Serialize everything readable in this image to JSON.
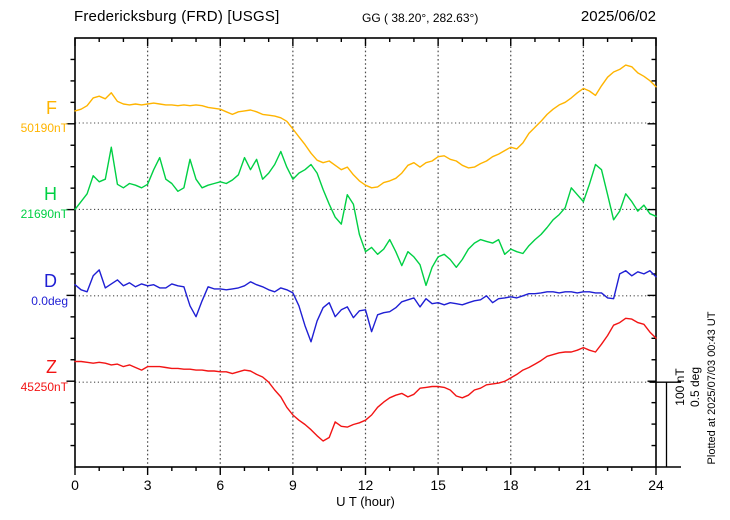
{
  "header": {
    "station_title": "Fredericksburg (FRD)  [USGS]",
    "coordinates": "GG ( 38.20°, 282.63°)",
    "date": "2025/06/02"
  },
  "axis": {
    "x_label": "U T (hour)",
    "x_tick_labels": [
      "0",
      "3",
      "6",
      "9",
      "12",
      "15",
      "18",
      "21",
      "24"
    ]
  },
  "scalebar": {
    "line1": "100 nT",
    "line2": "0.5 deg"
  },
  "footer": {
    "plotted_at": "Plotted at 2025/07/03 00:43 UT"
  },
  "chart_data": {
    "type": "line",
    "title": "Fredericksburg (FRD) magnetogram 2025/06/02",
    "xlabel": "U T (hour)",
    "x_range_hours": [
      0,
      24
    ],
    "x_major_tick_hours": 3,
    "x_minor_tick_hours": 1,
    "sample_step_hours": 0.25,
    "grid": "dotted, vertical every 3 h, horizontal at each trace baseline",
    "scale_per_division": {
      "nT": 100,
      "deg": 0.5
    },
    "series": [
      {
        "name": "F",
        "baseline_label": "50190nT",
        "baseline_value": 50190,
        "unit": "nT",
        "color": "#ffb400",
        "offsets": [
          14,
          16,
          20,
          29,
          31,
          28,
          35,
          25,
          22,
          21,
          22,
          21,
          22,
          23,
          22,
          21,
          21,
          20,
          21,
          20,
          21,
          20,
          18,
          17,
          16,
          13,
          10,
          13,
          14,
          15,
          13,
          10,
          9,
          8,
          6,
          2,
          -7,
          -16,
          -25,
          -35,
          -43,
          -46,
          -44,
          -49,
          -54,
          -51,
          -60,
          -67,
          -72,
          -75,
          -74,
          -69,
          -67,
          -64,
          -58,
          -49,
          -46,
          -51,
          -46,
          -44,
          -39,
          -38,
          -42,
          -44,
          -49,
          -52,
          -51,
          -47,
          -44,
          -39,
          -36,
          -32,
          -28,
          -30,
          -23,
          -12,
          -5,
          2,
          10,
          16,
          21,
          24,
          29,
          35,
          40,
          37,
          32,
          43,
          53,
          59,
          62,
          67,
          65,
          58,
          54,
          49,
          42
        ]
      },
      {
        "name": "H",
        "baseline_label": "21690nT",
        "baseline_value": 21690,
        "unit": "nT",
        "color": "#00d044",
        "offsets": [
          0,
          9,
          18,
          39,
          32,
          35,
          72,
          29,
          25,
          30,
          28,
          25,
          29,
          46,
          60,
          35,
          30,
          21,
          25,
          58,
          35,
          25,
          28,
          30,
          32,
          30,
          34,
          40,
          60,
          46,
          58,
          35,
          42,
          52,
          67,
          49,
          35,
          42,
          46,
          52,
          42,
          23,
          6,
          -9,
          -17,
          17,
          6,
          -29,
          -49,
          -44,
          -52,
          -46,
          -35,
          -49,
          -65,
          -49,
          -55,
          -64,
          -88,
          -67,
          -55,
          -52,
          -58,
          -67,
          -58,
          -46,
          -39,
          -35,
          -37,
          -39,
          -35,
          -52,
          -46,
          -49,
          -51,
          -42,
          -35,
          -29,
          -21,
          -12,
          -6,
          2,
          25,
          17,
          9,
          29,
          52,
          46,
          17,
          -12,
          -2,
          18,
          9,
          -2,
          5,
          -5,
          -8
        ]
      },
      {
        "name": "D",
        "baseline_label": "0.0deg",
        "baseline_value": 0.0,
        "unit": "deg",
        "color": "#1f1fd4",
        "offsets": [
          0.064,
          0.035,
          0.023,
          0.116,
          0.15,
          0.046,
          0.069,
          0.092,
          0.058,
          0.075,
          0.052,
          0.069,
          0.058,
          0.064,
          0.046,
          0.046,
          0.069,
          0.058,
          0.052,
          -0.058,
          -0.121,
          -0.029,
          0.052,
          0.04,
          0.04,
          0.035,
          0.04,
          0.046,
          0.058,
          0.081,
          0.064,
          0.052,
          0.035,
          0.023,
          0.046,
          0.035,
          0.017,
          -0.058,
          -0.173,
          -0.266,
          -0.145,
          -0.069,
          -0.04,
          -0.121,
          -0.081,
          -0.064,
          -0.127,
          -0.087,
          -0.081,
          -0.208,
          -0.11,
          -0.098,
          -0.092,
          -0.069,
          -0.035,
          -0.023,
          -0.012,
          -0.064,
          -0.017,
          -0.046,
          -0.04,
          -0.052,
          -0.04,
          -0.046,
          -0.052,
          -0.04,
          -0.029,
          -0.023,
          0.0,
          -0.04,
          -0.017,
          -0.012,
          -0.006,
          -0.012,
          0.0,
          0.012,
          0.012,
          0.017,
          0.023,
          0.023,
          0.017,
          0.023,
          0.023,
          0.017,
          0.023,
          0.023,
          0.017,
          0.017,
          -0.012,
          -0.017,
          0.127,
          0.145,
          0.116,
          0.139,
          0.127,
          0.145,
          0.11
        ]
      },
      {
        "name": "Z",
        "baseline_label": "45250nT",
        "baseline_value": 45250,
        "unit": "nT",
        "color": "#f21414",
        "offsets": [
          24,
          24,
          23,
          22,
          23,
          22,
          20,
          21,
          18,
          20,
          17,
          14,
          18,
          18,
          18,
          17,
          16,
          16,
          15,
          15,
          14,
          14,
          13,
          13,
          12,
          12,
          10,
          12,
          14,
          13,
          9,
          6,
          0,
          -9,
          -17,
          -29,
          -38,
          -44,
          -49,
          -55,
          -62,
          -68,
          -64,
          -46,
          -51,
          -52,
          -49,
          -47,
          -44,
          -38,
          -29,
          -23,
          -18,
          -15,
          -13,
          -17,
          -14,
          -7,
          -6,
          -5,
          -5,
          -6,
          -9,
          -16,
          -18,
          -15,
          -9,
          -7,
          -3,
          -2,
          -1,
          1,
          5,
          9,
          14,
          17,
          21,
          25,
          30,
          32,
          34,
          35,
          35,
          37,
          40,
          37,
          35,
          44,
          54,
          66,
          69,
          74,
          73,
          69,
          67,
          58,
          51
        ]
      }
    ]
  }
}
